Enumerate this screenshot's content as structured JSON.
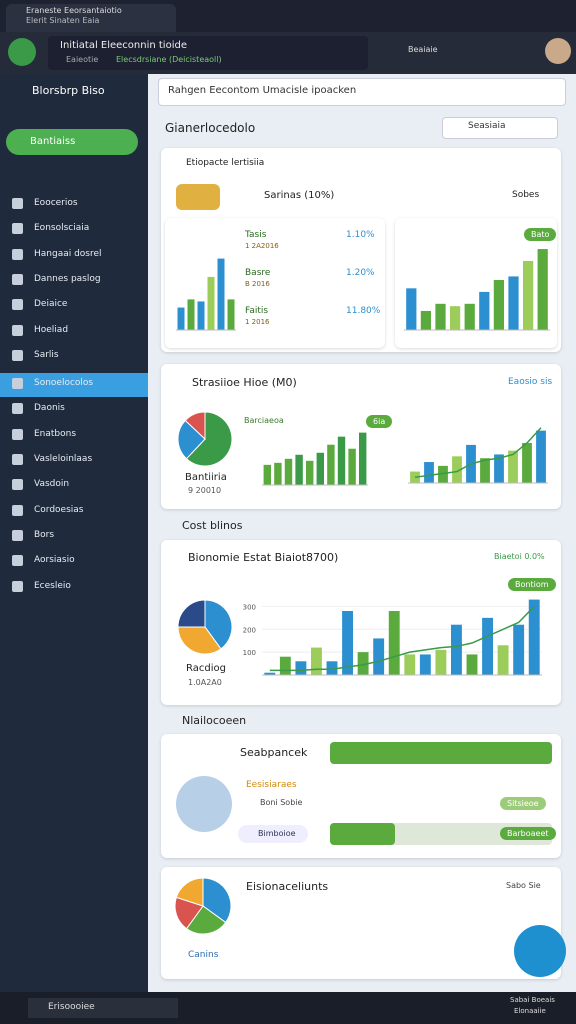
{
  "browser": {
    "tab_title": "Eraneste Eeorsantaiotio",
    "tab_subtitle": "Elerit Sinaten Eaia",
    "app_name": "Initiatal Eleeconnin tioide",
    "app_path": "Eaieotie",
    "app_url": "Elecsdrsiane (Deicisteaoll)",
    "profile": "Beaiaie"
  },
  "sidebar": {
    "title": "Blorsbrp Biso",
    "button": "Bantiaiss",
    "items": [
      "Eoocerios",
      "Eonsolsciaia",
      "Hangaai dosrel",
      "Dannes paslog",
      "Deiaice",
      "Hoeliad",
      "Sarlis",
      "Sonoelocolos",
      "Daonis",
      "Enatbons",
      "Vasleloinlaas",
      "Vasdoin",
      "Cordoesias",
      "Bors",
      "Aorsiasio",
      "Ecesleio"
    ]
  },
  "search": {
    "placeholder": "Rahgen Eecontom Umacisle ipoacken"
  },
  "page": {
    "title": "Gianerlocedolo",
    "search": "Seasiaia"
  },
  "card1": {
    "title": "Etiopacte lertisiia",
    "series_label": "Sarinas (10%)",
    "sort": "Sobes",
    "badge": "Bato",
    "stats": [
      {
        "label": "Tasis",
        "sub": "1 2A2016",
        "value": "1.10%"
      },
      {
        "label": "Basre",
        "sub": "B 2016",
        "value": "1.20%"
      },
      {
        "label": "Faitis",
        "sub": "1 2016",
        "value": "11.80%"
      }
    ]
  },
  "card2": {
    "title": "Strasiioe Hioe (M0)",
    "link": "Eaosio sis",
    "legend": "Barciaeoa",
    "badge": "6ia",
    "pie_label": "Bantiiria",
    "pie_value": "9 20010"
  },
  "section1": "Cost blinos",
  "card3": {
    "title": "Bionomie Estat Biaiot8700)",
    "right": "Biaetoi 0.0%",
    "badge": "Bontiom",
    "pie_label": "Racdiog",
    "pie_value": "1.0A2A0"
  },
  "section2": "Nlailocoeen",
  "card4": {
    "title": "Seabpancek",
    "name": "Eesisiaraes",
    "check": "Boni Sobie",
    "chip": "Bimboioe",
    "badge1": "Sitsieoe",
    "badge2": "Barboaeet"
  },
  "card5": {
    "title": "Eisionaceliunts",
    "pie_label": "Canins",
    "right": "Sabo Sie"
  },
  "taskbar": {
    "search": "Erisoooiee",
    "time": "Sabai Boeais",
    "date": "Elonaaiie"
  },
  "chart_data": [
    {
      "type": "bar",
      "values": [
        22,
        30,
        28,
        52,
        70,
        30
      ],
      "colors": [
        "#2b8fd0",
        "#5aaa3e",
        "#2b8fd0",
        "#9ccc5a",
        "#2b8fd0",
        "#5aaa3e"
      ]
    },
    {
      "type": "bar",
      "values": [
        35,
        16,
        22,
        20,
        22,
        32,
        42,
        45,
        58,
        68
      ],
      "colors": [
        "#2b8fd0",
        "#5aaa3e",
        "#5aaa3e",
        "#9ccc5a",
        "#5aaa3e",
        "#2b8fd0",
        "#5aaa3e",
        "#2b8fd0",
        "#9ccc5a",
        "#5aaa3e"
      ]
    },
    {
      "type": "pie",
      "values": [
        62,
        25,
        13
      ],
      "colors": [
        "#3a9a48",
        "#2b8fd0",
        "#d9534f"
      ]
    },
    {
      "type": "bar",
      "values": [
        20,
        22,
        26,
        30,
        24,
        32,
        40,
        48,
        36,
        52
      ],
      "colors": [
        "#5aaa3e",
        "#5aaa3e",
        "#5aaa3e",
        "#3a9a48",
        "#5aaa3e",
        "#3a9a48",
        "#5aaa3e",
        "#3a9a48",
        "#5aaa3e",
        "#3a9a48"
      ]
    },
    {
      "type": "combo",
      "values": [
        12,
        22,
        18,
        28,
        40,
        26,
        30,
        34,
        42,
        55
      ],
      "line": [
        6,
        8,
        10,
        12,
        20,
        24,
        26,
        30,
        42,
        58
      ],
      "colors": [
        "#9ccc5a",
        "#2b8fd0",
        "#5aaa3e",
        "#9ccc5a",
        "#2b8fd0",
        "#5aaa3e",
        "#2b8fd0",
        "#9ccc5a",
        "#5aaa3e",
        "#2b8fd0"
      ]
    },
    {
      "type": "pie",
      "values": [
        40,
        35,
        25
      ],
      "colors": [
        "#2b8fd0",
        "#f0a830",
        "#2a4a8a"
      ]
    },
    {
      "type": "combo",
      "ylim": [
        0,
        350
      ],
      "yticks": [
        100,
        200,
        300
      ],
      "values": [
        10,
        80,
        60,
        120,
        60,
        280,
        100,
        160,
        280,
        90,
        90,
        110,
        220,
        90,
        250,
        130,
        220,
        330
      ],
      "line": [
        20,
        20,
        20,
        25,
        25,
        35,
        45,
        60,
        80,
        100,
        110,
        120,
        125,
        140,
        170,
        200,
        230,
        300
      ],
      "colors": [
        "#2b8fd0",
        "#5aaa3e",
        "#2b8fd0",
        "#9ccc5a",
        "#2b8fd0",
        "#2b8fd0",
        "#5aaa3e",
        "#2b8fd0",
        "#5aaa3e",
        "#9ccc5a",
        "#2b8fd0",
        "#9ccc5a",
        "#2b8fd0",
        "#5aaa3e",
        "#2b8fd0",
        "#9ccc5a",
        "#2b8fd0",
        "#2b8fd0"
      ]
    },
    {
      "type": "pie",
      "values": [
        35,
        25,
        20,
        20
      ],
      "colors": [
        "#2b8fd0",
        "#5aaa3e",
        "#d9534f",
        "#f0a830"
      ]
    }
  ]
}
